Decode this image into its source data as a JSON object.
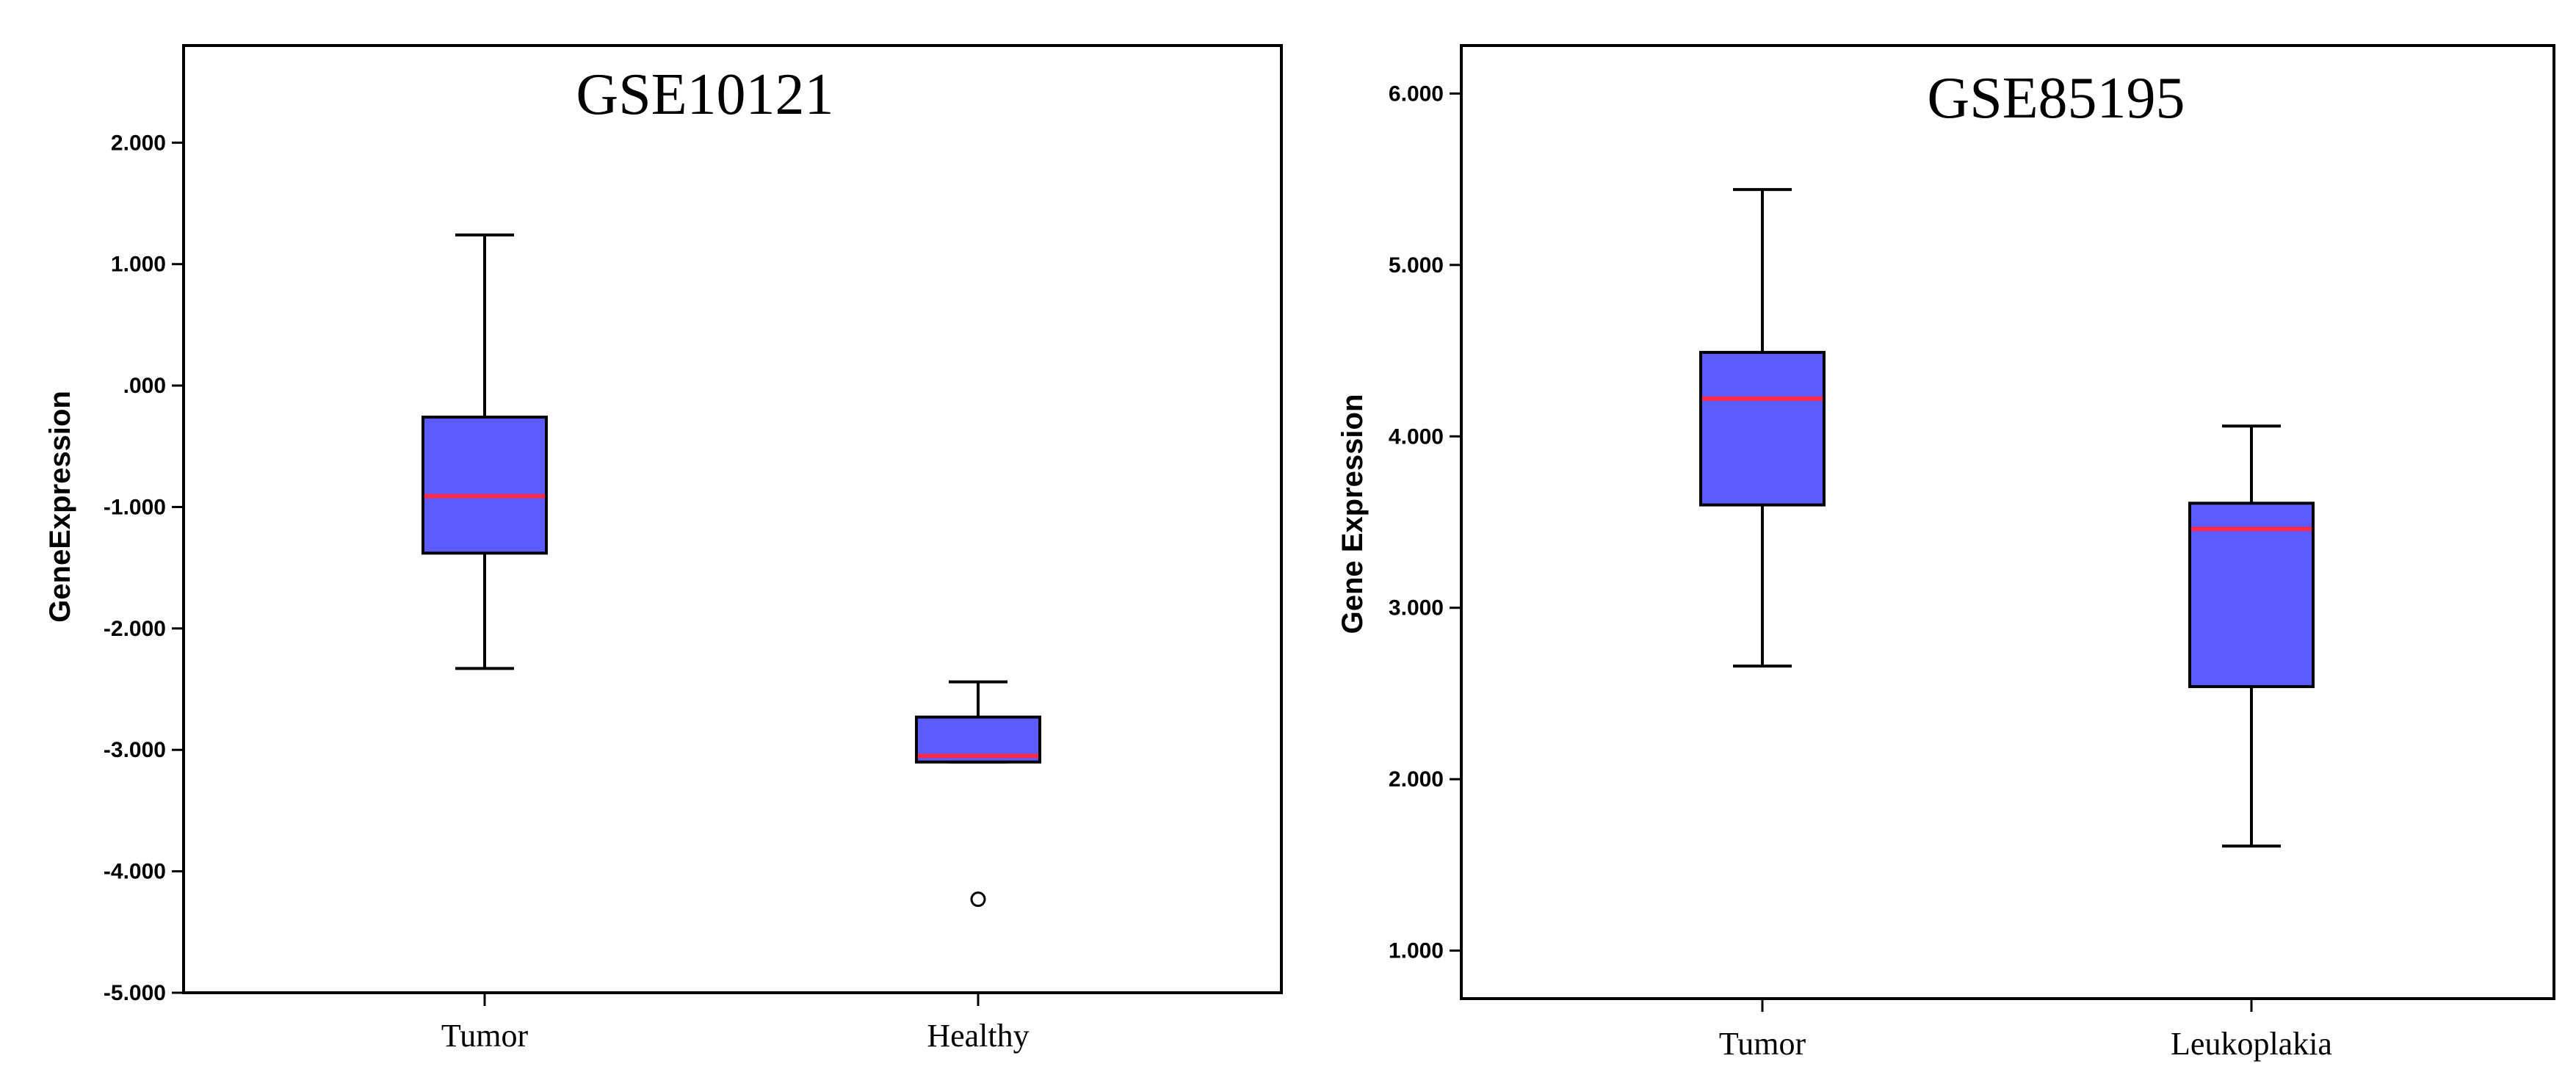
{
  "colors": {
    "box_fill": "#5b5bff",
    "median": "#ff2a4a",
    "line": "#000000",
    "background": "#ffffff"
  },
  "chart_data": [
    {
      "type": "box",
      "title": "GSE10121",
      "xlabel": "",
      "ylabel": "GeneExpression",
      "ylim": [
        -5.0,
        2.8
      ],
      "yticks": [
        -5,
        -4,
        -3,
        -2,
        -1,
        0,
        1,
        2
      ],
      "ytick_labels": [
        "-5.000",
        "-4.000",
        "-3.000",
        "-2.000",
        "-1.000",
        ".000",
        "1.000",
        "2.000"
      ],
      "categories": [
        "Tumor",
        "Healthy"
      ],
      "boxes": [
        {
          "name": "Tumor",
          "whisker_low": -2.33,
          "q1": -1.38,
          "median": -0.91,
          "q3": -0.26,
          "whisker_high": 1.24,
          "outliers": []
        },
        {
          "name": "Healthy",
          "whisker_low": -3.1,
          "q1": -3.1,
          "median": -3.05,
          "q3": -2.73,
          "whisker_high": -2.44,
          "outliers": [
            -4.23
          ]
        }
      ]
    },
    {
      "type": "box",
      "title": "GSE85195",
      "xlabel": "",
      "ylabel": "Gene Expression",
      "ylim": [
        0.72,
        6.28
      ],
      "yticks": [
        1,
        2,
        3,
        4,
        5,
        6
      ],
      "ytick_labels": [
        "1.000",
        "2.000",
        "3.000",
        "4.000",
        "5.000",
        "6.000"
      ],
      "categories": [
        "Tumor",
        "Leukoplakia"
      ],
      "boxes": [
        {
          "name": "Tumor",
          "whisker_low": 2.66,
          "q1": 3.6,
          "median": 4.22,
          "q3": 4.49,
          "whisker_high": 5.44,
          "outliers": []
        },
        {
          "name": "Leukoplakia",
          "whisker_low": 1.61,
          "q1": 2.54,
          "median": 3.46,
          "q3": 3.61,
          "whisker_high": 4.06,
          "outliers": []
        }
      ]
    }
  ]
}
